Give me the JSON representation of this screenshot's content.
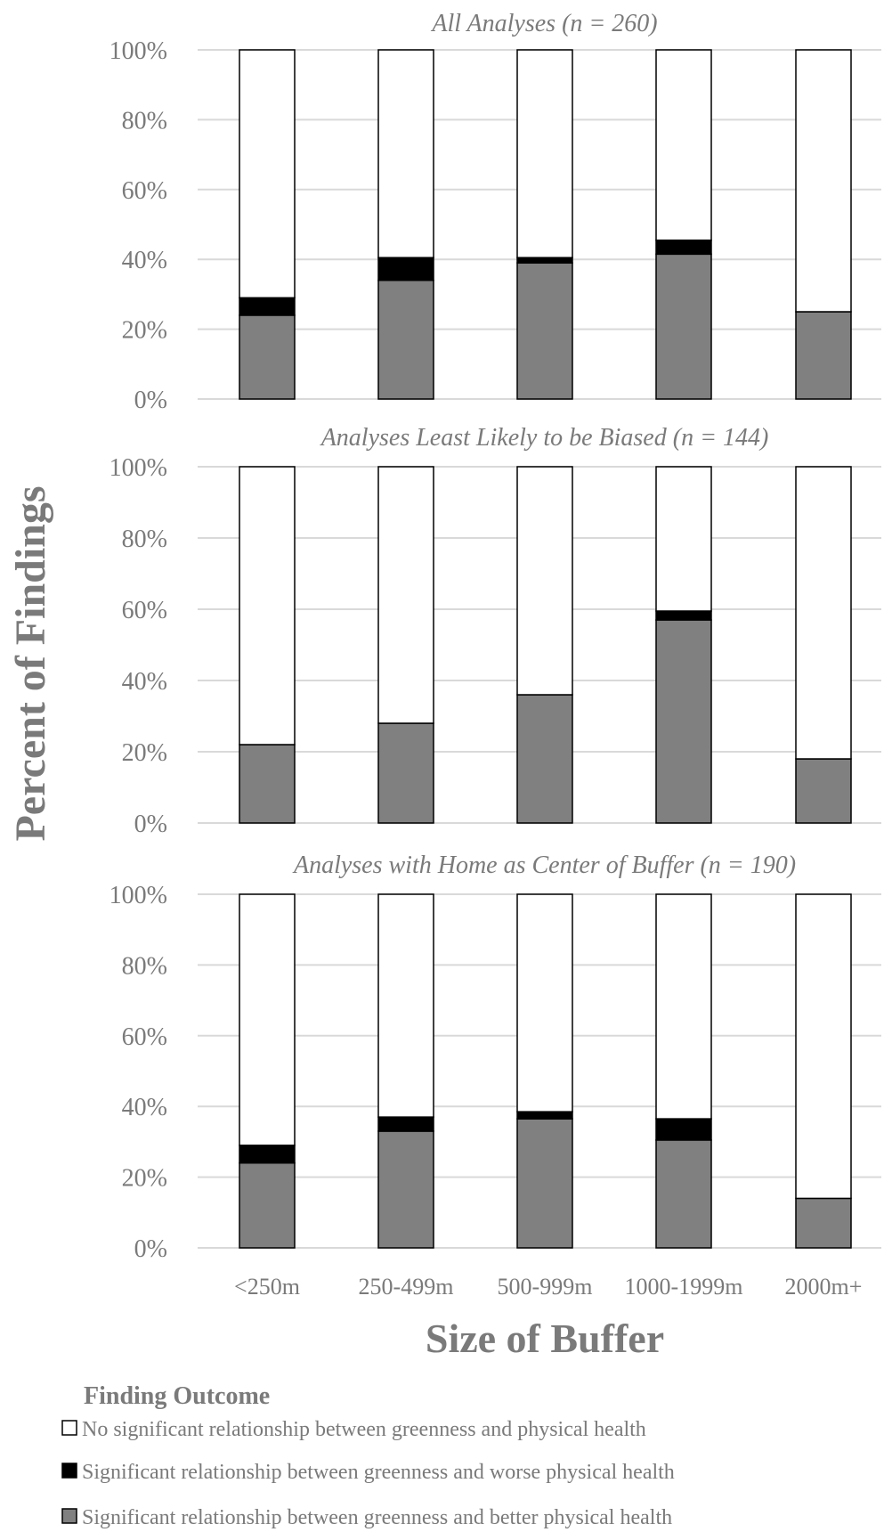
{
  "chart_data": {
    "type": "bar",
    "stacked": true,
    "ylabel": "Percent of Findings",
    "xlabel": "Size of Buffer",
    "categories": [
      "<250m",
      "250-499m",
      "500-999m",
      "1000-1999m",
      "2000m+"
    ],
    "ylim": [
      0,
      100
    ],
    "yticks": [
      "0%",
      "20%",
      "40%",
      "60%",
      "80%",
      "100%"
    ],
    "grid": true,
    "legend": {
      "title": "Finding Outcome",
      "position": "bottom",
      "entries": [
        {
          "label": "No significant relationship between greenness and physical health",
          "color": "#ffffff"
        },
        {
          "label": "Significant relationship between greenness and worse physical health",
          "color": "#000000"
        },
        {
          "label": "Significant relationship between  greenness and better physical health",
          "color": "#808080"
        }
      ]
    },
    "panels": [
      {
        "title": "All Analyses (n = 260)",
        "series": [
          {
            "name": "Significant relationship between  greenness and better physical health",
            "color": "#808080",
            "values": [
              24,
              34,
              39,
              41.5,
              25
            ]
          },
          {
            "name": "Significant relationship between greenness and worse physical health",
            "color": "#000000",
            "values": [
              5,
              6.5,
              1.5,
              4,
              0
            ]
          },
          {
            "name": "No significant relationship between greenness and physical health",
            "color": "#ffffff",
            "values": [
              71,
              59.5,
              59.5,
              54.5,
              75
            ]
          }
        ]
      },
      {
        "title": "Analyses Least Likely to be Biased (n = 144)",
        "series": [
          {
            "name": "Significant relationship between  greenness and better physical health",
            "color": "#808080",
            "values": [
              22,
              28,
              36,
              57,
              18
            ]
          },
          {
            "name": "Significant relationship between greenness and worse physical health",
            "color": "#000000",
            "values": [
              0,
              0,
              0,
              2.5,
              0
            ]
          },
          {
            "name": "No significant relationship between greenness and physical health",
            "color": "#ffffff",
            "values": [
              78,
              72,
              64,
              40.5,
              82
            ]
          }
        ]
      },
      {
        "title": "Analyses with Home as Center of Buffer (n = 190)",
        "series": [
          {
            "name": "Significant relationship between  greenness and better physical health",
            "color": "#808080",
            "values": [
              24,
              33,
              36.5,
              30.5,
              14
            ]
          },
          {
            "name": "Significant relationship between greenness and worse physical health",
            "color": "#000000",
            "values": [
              5,
              4,
              2,
              6,
              0
            ]
          },
          {
            "name": "No significant relationship between greenness and physical health",
            "color": "#ffffff",
            "values": [
              71,
              63,
              61.5,
              63.5,
              86
            ]
          }
        ]
      }
    ]
  }
}
